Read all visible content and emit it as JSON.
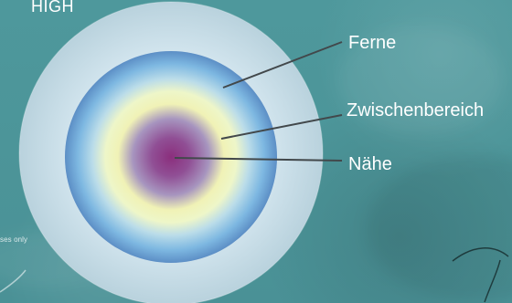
{
  "diagram": {
    "header": "HIGH",
    "zones": [
      {
        "label": "Ferne"
      },
      {
        "label": "Zwischenbereich"
      },
      {
        "label": "Nähe"
      }
    ],
    "note": "ses only"
  },
  "colors": {
    "background": "#4f979c",
    "outer_ring": "#dceaf0",
    "far_zone": "#5d95cf",
    "intermediate_zone": "#f4f4b8",
    "near_zone": "#8d5aa0",
    "center": "#8b2f7d",
    "leader_lines": "#42484b",
    "label_text": "#ffffff"
  }
}
